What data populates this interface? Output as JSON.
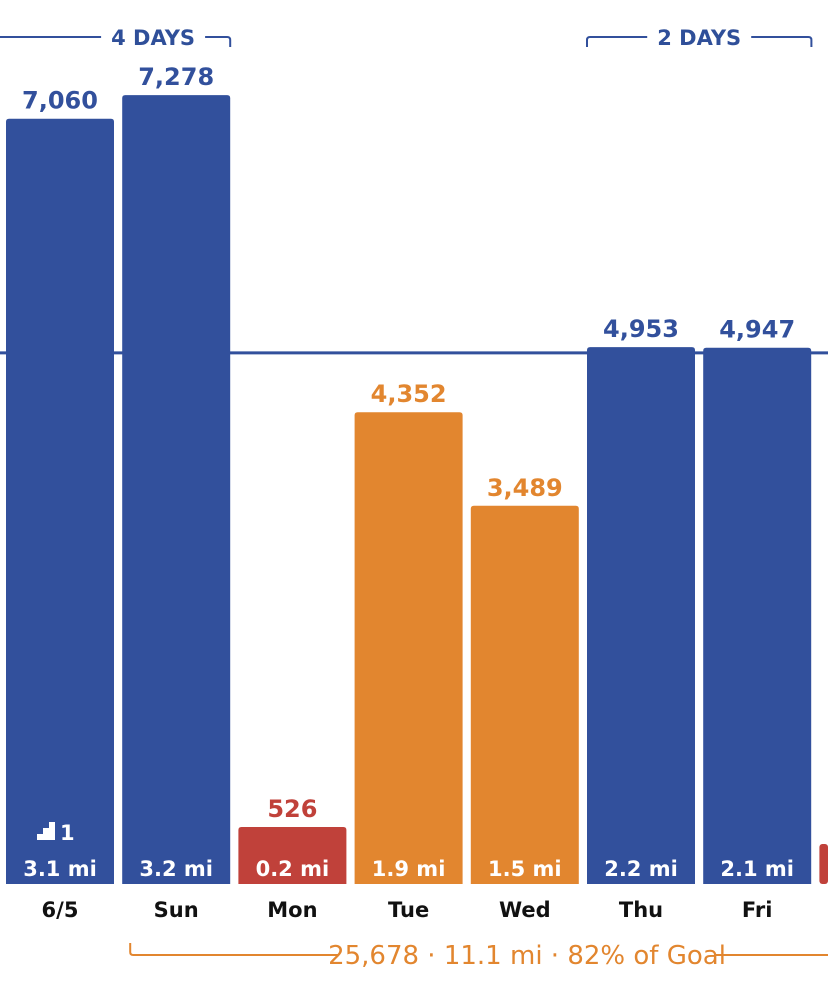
{
  "chart_data": {
    "type": "bar",
    "categories": [
      "6/5",
      "Sun",
      "Mon",
      "Tue",
      "Wed",
      "Thu",
      "Fri"
    ],
    "values": [
      7060,
      7278,
      526,
      4352,
      3489,
      4953,
      4947
    ],
    "value_labels": [
      "7,060",
      "7,278",
      "526",
      "4,352",
      "3,489",
      "4,953",
      "4,947"
    ],
    "distances": [
      "3.1 mi",
      "3.2 mi",
      "0.2 mi",
      "1.9 mi",
      "1.5 mi",
      "2.2 mi",
      "2.1 mi"
    ],
    "status": [
      "goal",
      "goal",
      "low",
      "partial",
      "partial",
      "goal",
      "goal"
    ],
    "goal": 4900,
    "ylim": [
      0,
      8600
    ],
    "title": "",
    "xlabel": "",
    "ylabel": "",
    "grid": false,
    "partial_next_bar_status": "low",
    "streaks": [
      {
        "label": "4 DAYS",
        "start_index": -1,
        "end_index": 1
      },
      {
        "label": "2 DAYS",
        "start_index": 5,
        "end_index": 7
      }
    ],
    "flights": {
      "index": 0,
      "count": "1",
      "icon": "stairs-icon"
    },
    "summary": {
      "text": "25,678 · 11.1 mi · 82% of Goal",
      "start_index": 1,
      "end_index": 7
    }
  },
  "colors": {
    "goal": "#32509c",
    "partial": "#e2862f",
    "low": "#c0413a",
    "goal_line": "#32509c",
    "axis_text": "#111111"
  }
}
